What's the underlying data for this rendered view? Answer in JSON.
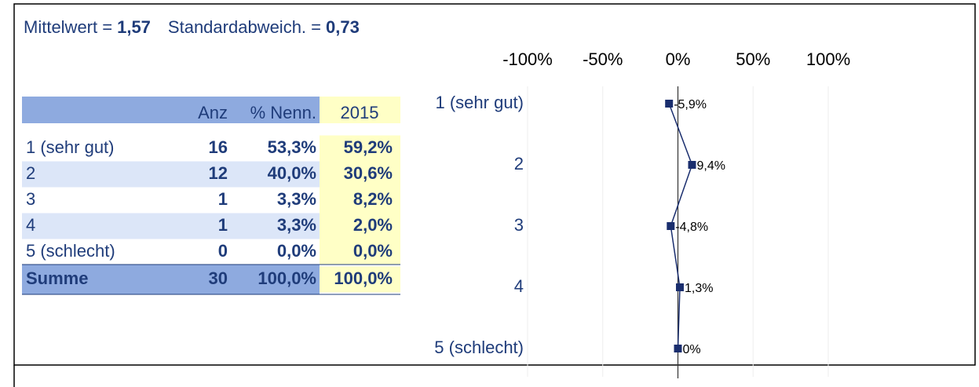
{
  "header": {
    "mean_label": "Mittelwert =",
    "mean_value": "1,57",
    "sd_label": "Standardabweich. =",
    "sd_value": "0,73"
  },
  "table": {
    "columns": [
      "Anz",
      "% Nenn.",
      "2015"
    ],
    "rows": [
      [
        "1 (sehr gut)",
        "16",
        "53,3%",
        "59,2%"
      ],
      [
        "2",
        "12",
        "40,0%",
        "30,6%"
      ],
      [
        "3",
        "1",
        "3,3%",
        "8,2%"
      ],
      [
        "4",
        "1",
        "3,3%",
        "2,0%"
      ],
      [
        "5 (schlecht)",
        "0",
        "0,0%",
        "0,0%"
      ]
    ],
    "total": [
      "Summe",
      "30",
      "100,0%",
      "100,0%"
    ]
  },
  "chart_data": {
    "type": "line",
    "orientation": "horizontal",
    "categories": [
      "1 (sehr gut)",
      "2",
      "3",
      "4",
      "5 (schlecht)"
    ],
    "values": [
      -5.9,
      9.4,
      -4.8,
      1.3,
      0
    ],
    "value_labels": [
      "-5,9%",
      "9,4%",
      "-4,8%",
      "1,3%",
      "0%"
    ],
    "color": "#1a2e6e",
    "xlim": [
      -100,
      100
    ],
    "xticks": [
      {
        "value": -100,
        "label": "-100%"
      },
      {
        "value": -50,
        "label": "-50%"
      },
      {
        "value": 0,
        "label": "0%"
      },
      {
        "value": 50,
        "label": "50%"
      },
      {
        "value": 100,
        "label": "100%"
      }
    ],
    "grid": true
  }
}
